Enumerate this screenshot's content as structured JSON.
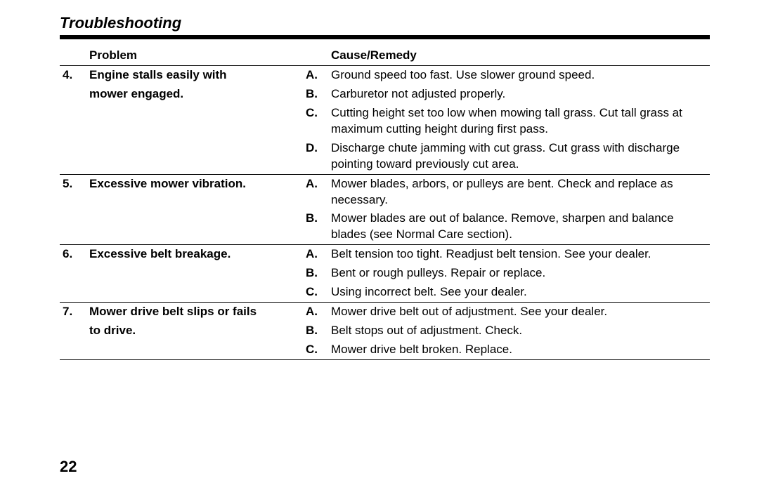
{
  "section_title": "Troubleshooting",
  "headers": {
    "problem": "Problem",
    "cause": "Cause/Remedy"
  },
  "rows": [
    {
      "num": "4.",
      "problem_lines": [
        "Engine stalls easily with",
        "mower engaged."
      ],
      "causes": [
        {
          "letter": "A.",
          "text": "Ground speed too fast. Use slower ground speed."
        },
        {
          "letter": "B.",
          "text": "Carburetor not adjusted properly."
        },
        {
          "letter": "C.",
          "text": "Cutting height set too low when mowing tall grass. Cut tall grass at maximum cutting height during first pass."
        },
        {
          "letter": "D.",
          "text": "Discharge chute jamming with cut grass. Cut grass with discharge pointing toward previously cut area."
        }
      ]
    },
    {
      "num": "5.",
      "problem_lines": [
        "Excessive mower vibration."
      ],
      "causes": [
        {
          "letter": "A.",
          "text": "Mower blades, arbors, or pulleys are bent. Check and replace as necessary."
        },
        {
          "letter": "B.",
          "text": "Mower blades are out of balance. Remove, sharpen and balance blades (see Normal Care section)."
        }
      ]
    },
    {
      "num": "6.",
      "problem_lines": [
        "Excessive belt breakage."
      ],
      "causes": [
        {
          "letter": "A.",
          "text": "Belt tension too tight. Readjust belt tension. See your dealer."
        },
        {
          "letter": "B.",
          "text": "Bent or rough pulleys. Repair or replace."
        },
        {
          "letter": "C.",
          "text": "Using incorrect belt. See your dealer."
        }
      ]
    },
    {
      "num": "7.",
      "problem_lines": [
        "Mower drive belt slips or fails",
        "to drive."
      ],
      "causes": [
        {
          "letter": "A.",
          "text": "Mower drive belt out of adjustment. See your dealer."
        },
        {
          "letter": "B.",
          "text": "Belt stops out of adjustment. Check."
        },
        {
          "letter": "C.",
          "text": "Mower drive belt broken. Replace."
        }
      ]
    }
  ],
  "page_number": "22"
}
